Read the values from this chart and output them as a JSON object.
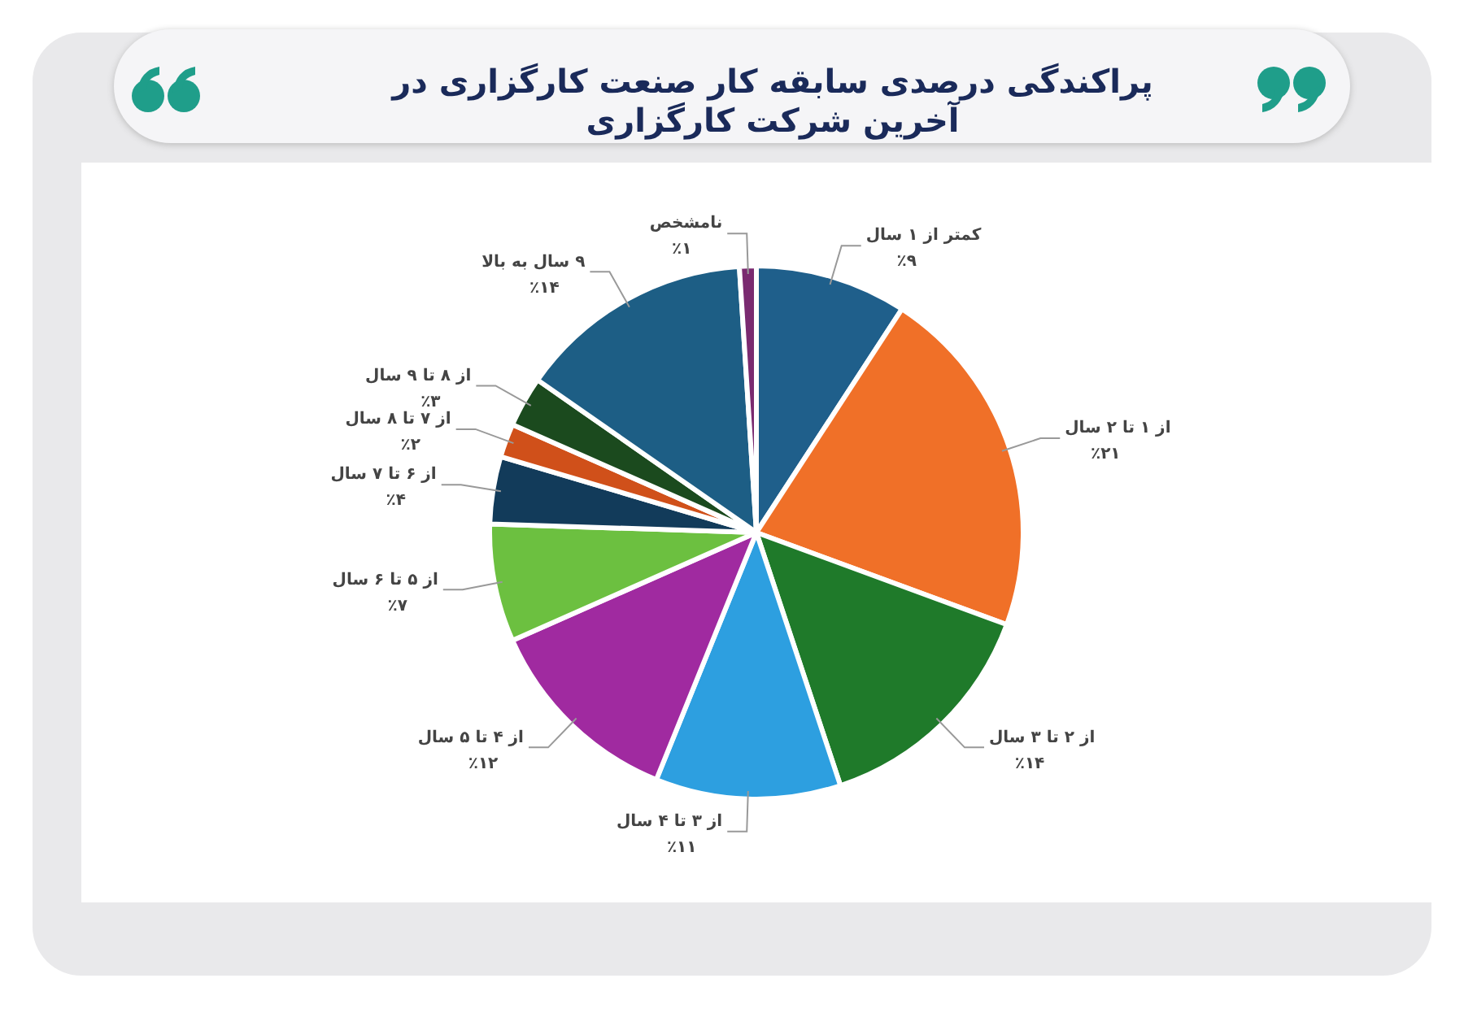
{
  "chart_data": {
    "type": "pie",
    "title": "پراکندگی درصدی سابقه کار صنعت کارگزاری در آخرین شرکت کارگزاری",
    "categories": [
      "کمتر از ۱ سال",
      "از ۱ تا ۲ سال",
      "از ۲ تا ۳ سال",
      "از ۳ تا ۴ سال",
      "از ۴ تا ۵ سال",
      "از ۵ تا ۶ سال",
      "از ۶ تا ۷ سال",
      "از ۷ تا ۸ سال",
      "از ۸ تا ۹ سال",
      "۹ سال به بالا",
      "نامشخص"
    ],
    "values": [
      9,
      21,
      14,
      11,
      12,
      7,
      4,
      2,
      3,
      14,
      1
    ],
    "value_labels": [
      "٪۹",
      "٪۲۱",
      "٪۱۴",
      "٪۱۱",
      "٪۱۲",
      "٪۷",
      "٪۴",
      "٪۲",
      "٪۳",
      "٪۱۴",
      "٪۱"
    ],
    "colors": [
      "#1f5f8b",
      "#f07028",
      "#1f7a2a",
      "#2d9fe0",
      "#a02aa0",
      "#6cc040",
      "#123b5a",
      "#d0501a",
      "#1b4a1e",
      "#1d5e85",
      "#7a2a70"
    ],
    "legend": false
  }
}
